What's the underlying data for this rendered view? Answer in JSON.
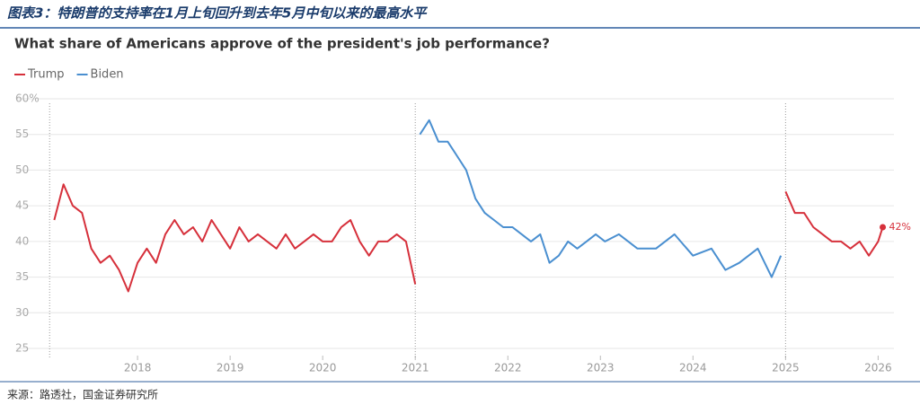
{
  "header_title": "图表3：特朗普的支持率在1月上旬回升到去年5月中旬以来的最高水平",
  "source": "来源：路透社，国金证券研究所",
  "chart_data": {
    "type": "line",
    "title": "What share of Americans approve of the president's job performance?",
    "series": [
      {
        "name": "Trump",
        "color": "#d6303b",
        "x": [
          2017.1,
          2017.2,
          2017.3,
          2017.4,
          2017.5,
          2017.6,
          2017.7,
          2017.8,
          2017.9,
          2018.0,
          2018.1,
          2018.2,
          2018.3,
          2018.4,
          2018.5,
          2018.6,
          2018.7,
          2018.8,
          2018.9,
          2019.0,
          2019.1,
          2019.2,
          2019.3,
          2019.4,
          2019.5,
          2019.6,
          2019.7,
          2019.8,
          2019.9,
          2020.0,
          2020.1,
          2020.2,
          2020.3,
          2020.4,
          2020.5,
          2020.6,
          2020.7,
          2020.8,
          2020.9,
          2021.0,
          2023.0,
          2025.0,
          2025.1,
          2025.2,
          2025.3,
          2025.4,
          2025.5,
          2025.6,
          2025.7,
          2025.8,
          2025.9,
          2026.0,
          2026.05
        ],
        "values": [
          43,
          48,
          45,
          44,
          39,
          37,
          38,
          36,
          33,
          37,
          39,
          37,
          41,
          43,
          41,
          42,
          40,
          43,
          41,
          39,
          42,
          40,
          41,
          40,
          39,
          41,
          39,
          40,
          41,
          40,
          40,
          42,
          43,
          40,
          38,
          40,
          40,
          41,
          40,
          34,
          null,
          47,
          44,
          44,
          42,
          41,
          40,
          40,
          39,
          40,
          38,
          40,
          42
        ]
      },
      {
        "name": "Biden",
        "color": "#4a8fd0",
        "x": [
          2021.05,
          2021.15,
          2021.25,
          2021.35,
          2021.45,
          2021.55,
          2021.65,
          2021.75,
          2021.85,
          2021.95,
          2022.05,
          2022.15,
          2022.25,
          2022.35,
          2022.45,
          2022.55,
          2022.65,
          2022.75,
          2022.85,
          2022.95,
          2023.05,
          2023.2,
          2023.4,
          2023.6,
          2023.8,
          2024.0,
          2024.2,
          2024.35,
          2024.5,
          2024.7,
          2024.85,
          2024.95
        ],
        "values": [
          55,
          57,
          54,
          54,
          52,
          50,
          46,
          44,
          43,
          42,
          42,
          41,
          40,
          41,
          37,
          38,
          40,
          39,
          40,
          41,
          40,
          41,
          39,
          39,
          41,
          38,
          39,
          36,
          37,
          39,
          35,
          38
        ]
      }
    ],
    "annotations": [
      {
        "text": "42%",
        "x": 2026.05,
        "y": 42
      }
    ],
    "vlines": [
      2017.05,
      2021.0,
      2025.0
    ],
    "xlim": [
      2016.65,
      2026.2
    ],
    "xticks": [
      2018,
      2019,
      2020,
      2021,
      2022,
      2023,
      2024,
      2025,
      2026
    ],
    "ylim": [
      25,
      60
    ],
    "yticks": [
      25,
      30,
      35,
      40,
      45,
      50,
      55,
      {
        "value": 60,
        "label": "60%"
      }
    ],
    "grid": true,
    "legend": "top-left"
  }
}
